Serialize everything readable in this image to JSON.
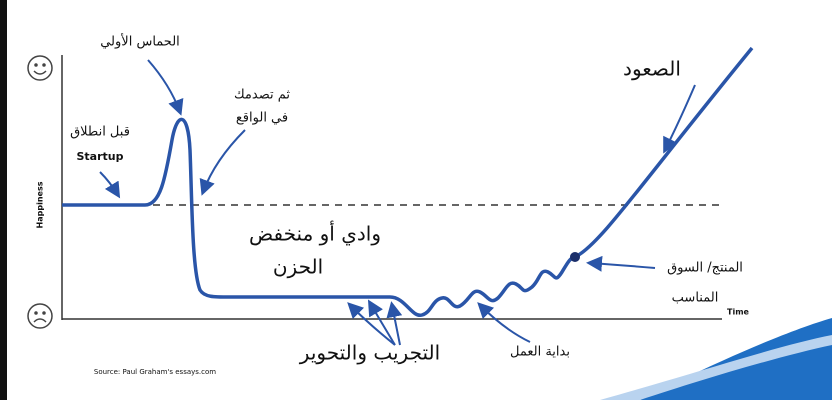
{
  "axes": {
    "y_label": "Happiness",
    "x_label": "Time"
  },
  "labels": {
    "initial_excitement": "الحماس الأولي",
    "before_launch": [
      "قبل انطلاق",
      "Startup"
    ],
    "reality_hits": [
      "ثم تصدمك",
      "في الواقع"
    ],
    "rise": "الصعود",
    "valley": [
      "وادي أو منخفض",
      "الحزن"
    ],
    "product_market_fit": [
      "المنتج/ السوق",
      "المناسب"
    ],
    "trial_and_pivot": "التجريب والتحوير",
    "start_work": "بداية العمل"
  },
  "source": "Source: Paul Graham's essays.com"
}
